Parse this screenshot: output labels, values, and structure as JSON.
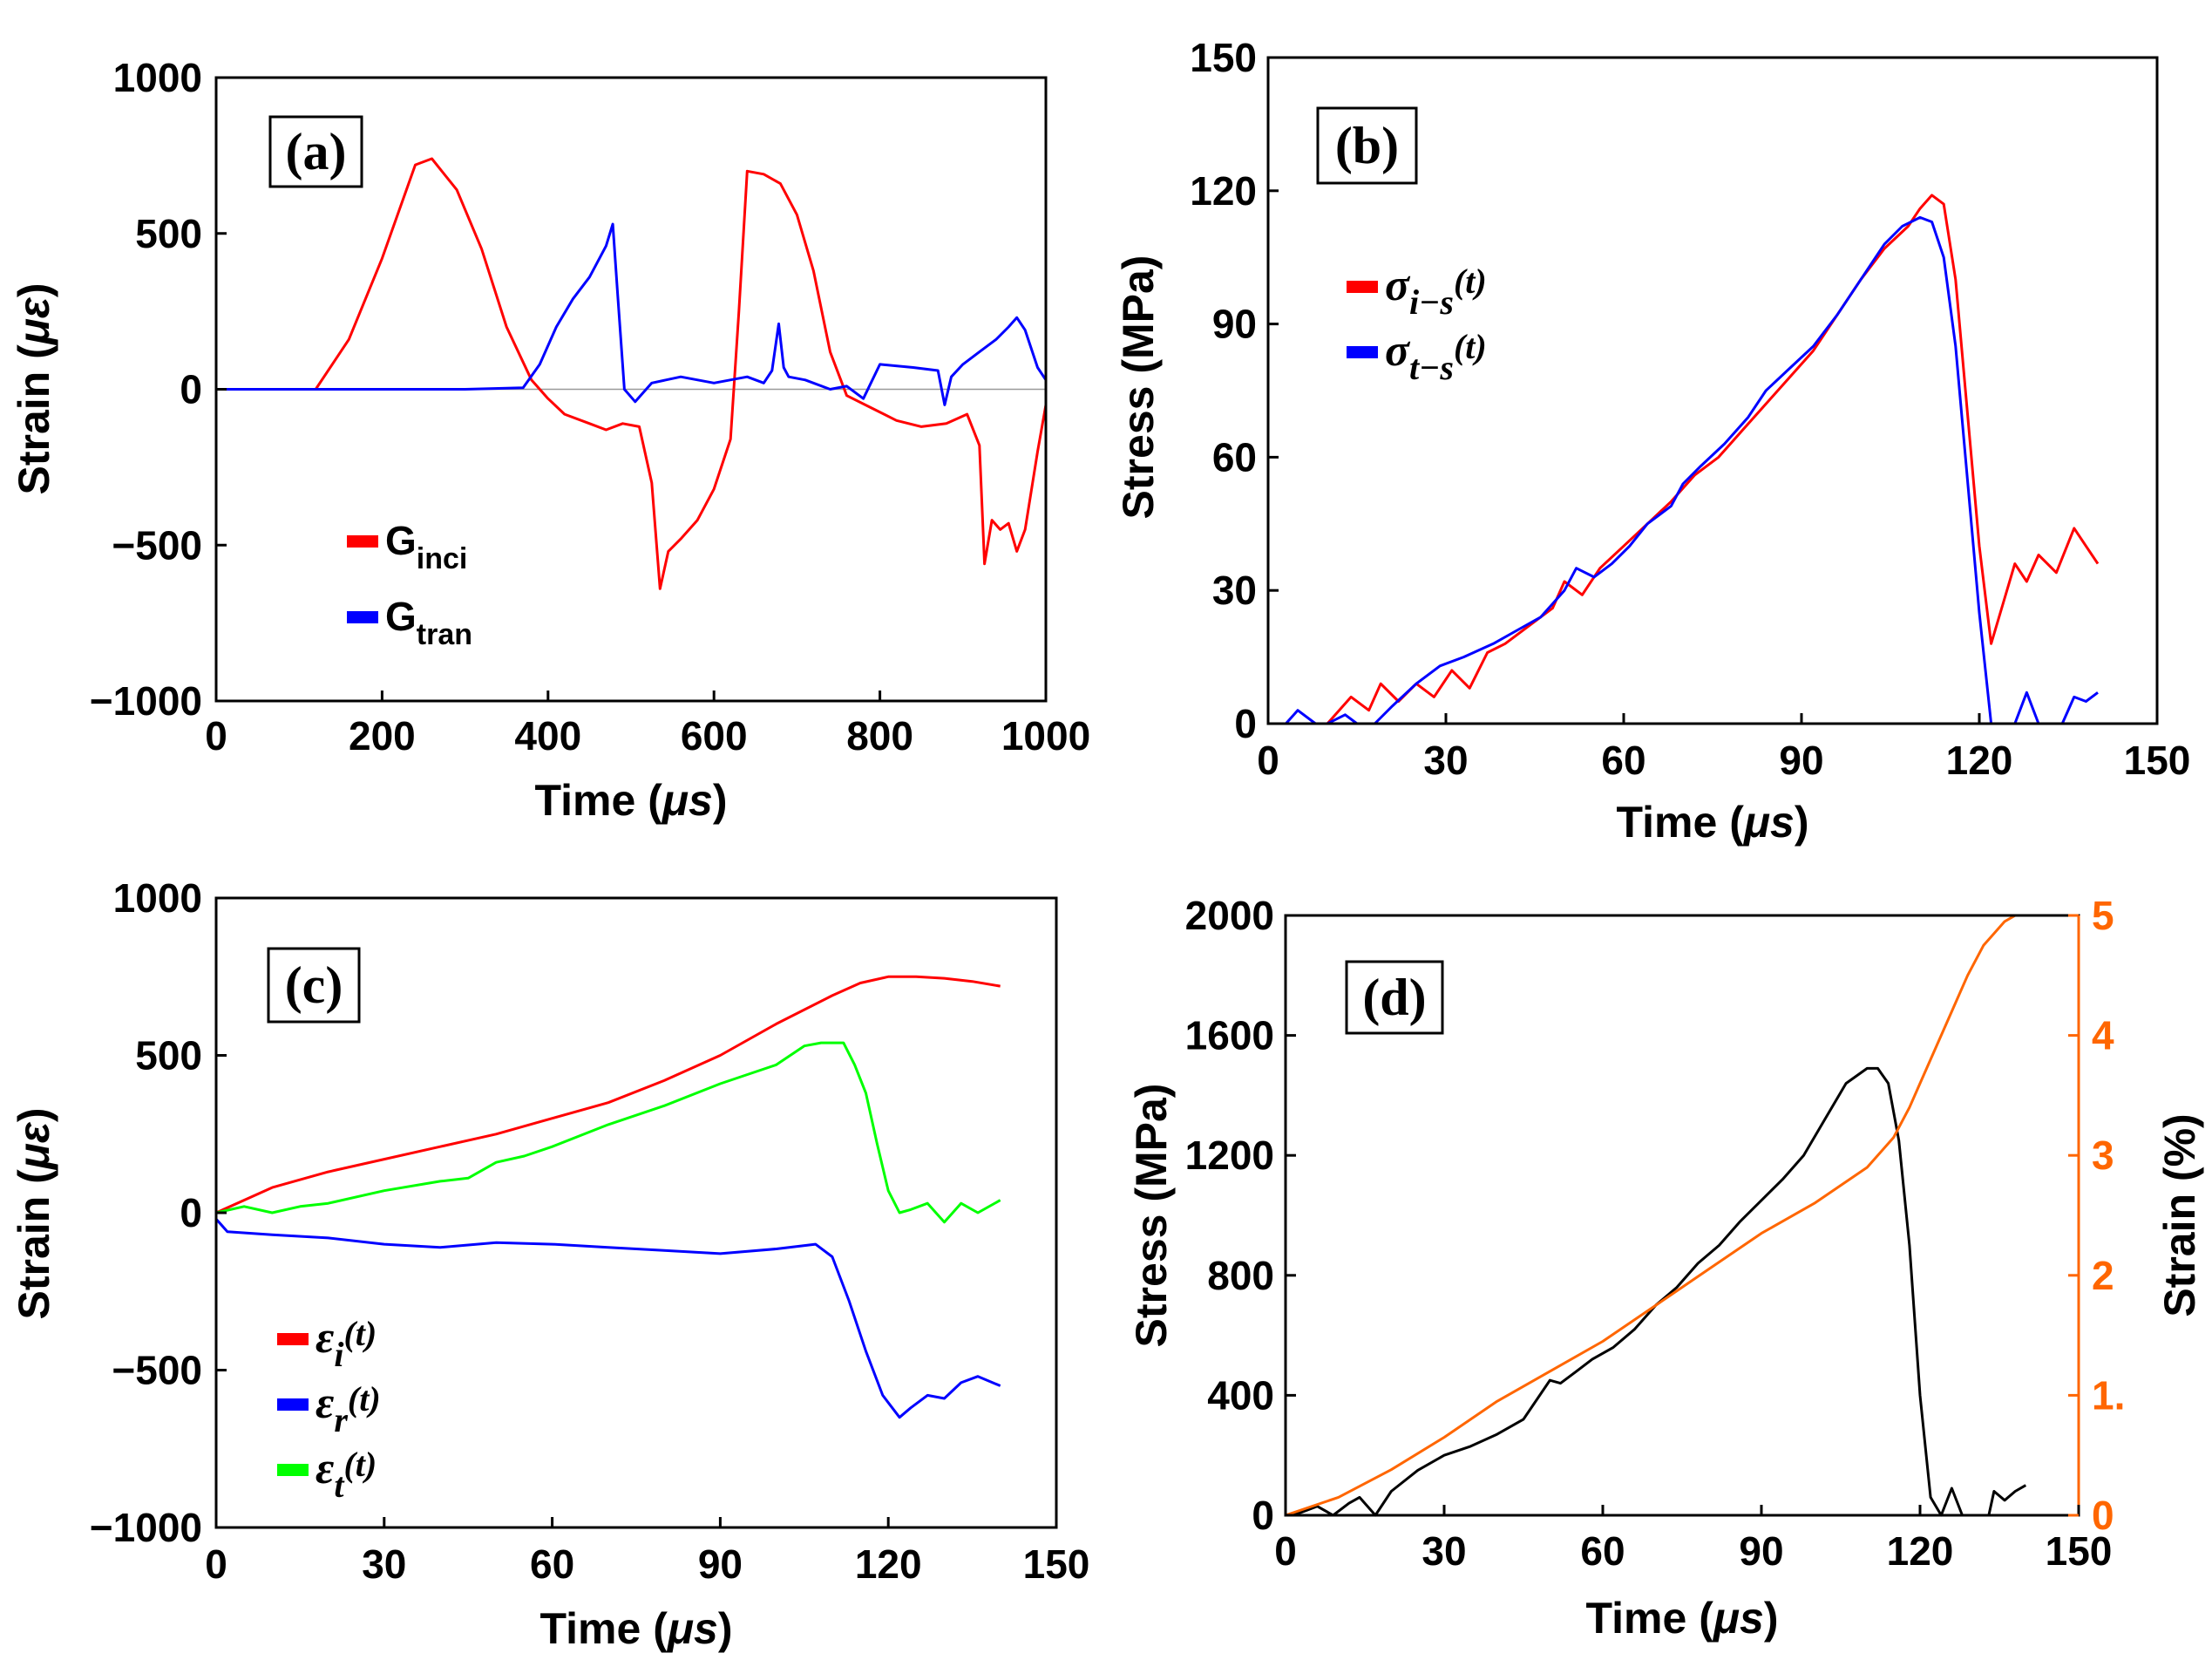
{
  "chart_data": [
    {
      "id": "a",
      "type": "line",
      "panel_label": "(a)",
      "xlabel_prefix": "Time (",
      "xlabel_mu": "μs",
      "xlabel_suffix": ")",
      "ylabel_prefix": "Strain (",
      "ylabel_mu": "με",
      "ylabel_suffix": ")",
      "xlim": [
        0,
        1000
      ],
      "ylim": [
        -1000,
        1000
      ],
      "xticks": [
        0,
        200,
        400,
        600,
        800,
        1000
      ],
      "xtick_labels": [
        "0",
        "200",
        "400",
        "600",
        "800",
        "1000"
      ],
      "yticks": [
        -1000,
        -500,
        0,
        500,
        1000
      ],
      "ytick_labels": [
        "−1000",
        "−500",
        "0",
        "500",
        "1000"
      ],
      "zero_line": true,
      "legend_position": "lower-left",
      "series": [
        {
          "name": "G_inci",
          "name_base": "G",
          "name_sub": "inci",
          "color": "#ff0000",
          "x": [
            0,
            60,
            120,
            160,
            200,
            240,
            260,
            290,
            320,
            350,
            380,
            400,
            420,
            450,
            470,
            490,
            510,
            525,
            535,
            545,
            560,
            580,
            600,
            620,
            630,
            640,
            660,
            680,
            700,
            720,
            740,
            760,
            790,
            820,
            850,
            880,
            905,
            920,
            926,
            935,
            945,
            955,
            965,
            975,
            990,
            1000
          ],
          "y": [
            0,
            0,
            0,
            160,
            420,
            720,
            740,
            640,
            450,
            200,
            30,
            -30,
            -80,
            -110,
            -130,
            -110,
            -120,
            -300,
            -640,
            -520,
            -480,
            -420,
            -320,
            -160,
            250,
            700,
            690,
            660,
            560,
            380,
            120,
            -20,
            -60,
            -100,
            -120,
            -110,
            -80,
            -180,
            -560,
            -420,
            -450,
            -430,
            -520,
            -450,
            -200,
            -50
          ]
        },
        {
          "name": "G_tran",
          "name_base": "G",
          "name_sub": "tran",
          "color": "#0000ff",
          "x": [
            0,
            100,
            200,
            300,
            370,
            390,
            410,
            430,
            450,
            470,
            478,
            484,
            492,
            505,
            525,
            560,
            600,
            640,
            660,
            670,
            678,
            684,
            690,
            710,
            740,
            760,
            780,
            800,
            840,
            870,
            878,
            886,
            900,
            920,
            940,
            955,
            965,
            975,
            990,
            1000
          ],
          "y": [
            0,
            0,
            0,
            0,
            5,
            80,
            200,
            290,
            360,
            460,
            530,
            300,
            0,
            -40,
            20,
            40,
            20,
            40,
            20,
            60,
            210,
            70,
            40,
            30,
            0,
            10,
            -30,
            80,
            70,
            60,
            -50,
            40,
            80,
            120,
            160,
            200,
            230,
            190,
            70,
            30
          ]
        }
      ]
    },
    {
      "id": "b",
      "type": "line",
      "panel_label": "(b)",
      "xlabel_prefix": "Time (",
      "xlabel_mu": "μs",
      "xlabel_suffix": ")",
      "ylabel": "Stress (MPa)",
      "xlim": [
        0,
        150
      ],
      "ylim": [
        0,
        150
      ],
      "xticks": [
        0,
        30,
        60,
        90,
        120,
        150
      ],
      "xtick_labels": [
        "0",
        "30",
        "60",
        "90",
        "120",
        "150"
      ],
      "yticks": [
        0,
        30,
        60,
        90,
        120,
        150
      ],
      "ytick_labels": [
        "0",
        "30",
        "60",
        "90",
        "120",
        "150"
      ],
      "legend_position": "upper-left",
      "series": [
        {
          "name": "σ_i-s(t)",
          "name_base": "σ",
          "name_sub": "i−s",
          "name_suffix": "(t)",
          "color": "#ff0000",
          "x": [
            10,
            14,
            17,
            19,
            22,
            25,
            28,
            31,
            34,
            37,
            40,
            44,
            48,
            50,
            53,
            56,
            60,
            64,
            68,
            72,
            76,
            80,
            84,
            88,
            92,
            96,
            100,
            104,
            108,
            110,
            112,
            114,
            116,
            118,
            120,
            122,
            124,
            126,
            128,
            130,
            133,
            136,
            138,
            140
          ],
          "y": [
            0,
            6,
            3,
            9,
            5,
            9,
            6,
            12,
            8,
            16,
            18,
            22,
            26,
            32,
            29,
            35,
            40,
            45,
            50,
            56,
            60,
            66,
            72,
            78,
            84,
            92,
            100,
            107,
            112,
            116,
            119,
            117,
            100,
            70,
            40,
            18,
            27,
            36,
            32,
            38,
            34,
            44,
            40,
            36
          ]
        },
        {
          "name": "σ_t-s(t)",
          "name_base": "σ",
          "name_sub": "t−s",
          "name_suffix": "(t)",
          "color": "#0000ff",
          "x": [
            3,
            5,
            8,
            10,
            13,
            15,
            18,
            21,
            25,
            29,
            33,
            38,
            42,
            46,
            50,
            52,
            55,
            58,
            61,
            64,
            68,
            70,
            73,
            77,
            81,
            84,
            88,
            92,
            96,
            100,
            104,
            107,
            110,
            112,
            114,
            116,
            118,
            120,
            122,
            124,
            126,
            128,
            130,
            133,
            134,
            136,
            138,
            140
          ],
          "y": [
            0,
            3,
            0,
            0,
            2,
            0,
            0,
            4,
            9,
            13,
            15,
            18,
            21,
            24,
            30,
            35,
            33,
            36,
            40,
            45,
            49,
            54,
            58,
            63,
            69,
            75,
            80,
            85,
            92,
            100,
            108,
            112,
            114,
            113,
            105,
            85,
            55,
            25,
            0,
            0,
            0,
            7,
            0,
            0,
            0,
            6,
            5,
            7
          ]
        }
      ]
    },
    {
      "id": "c",
      "type": "line",
      "panel_label": "(c)",
      "xlabel_prefix": "Time (",
      "xlabel_mu": "μs",
      "xlabel_suffix": ")",
      "ylabel_prefix": "Strain (",
      "ylabel_mu": "με",
      "ylabel_suffix": ")",
      "xlim": [
        0,
        150
      ],
      "ylim": [
        -1000,
        1000
      ],
      "xticks": [
        0,
        30,
        60,
        90,
        120,
        150
      ],
      "xtick_labels": [
        "0",
        "30",
        "60",
        "90",
        "120",
        "150"
      ],
      "yticks": [
        -1000,
        -500,
        0,
        500,
        1000
      ],
      "ytick_labels": [
        "−1000",
        "−500",
        "0",
        "500",
        "1000"
      ],
      "legend_position": "lower-left",
      "series": [
        {
          "name": "ε_i(t)",
          "name_base": "ε",
          "name_sub": "i",
          "name_suffix": "(t)",
          "color": "#ff0000",
          "x": [
            0,
            10,
            20,
            30,
            40,
            50,
            60,
            70,
            80,
            90,
            100,
            110,
            115,
            120,
            125,
            130,
            135,
            140
          ],
          "y": [
            0,
            80,
            130,
            170,
            210,
            250,
            300,
            350,
            420,
            500,
            600,
            690,
            730,
            750,
            750,
            745,
            735,
            720
          ]
        },
        {
          "name": "ε_r(t)",
          "name_base": "ε",
          "name_sub": "r",
          "name_suffix": "(t)",
          "color": "#0000ff",
          "x": [
            0,
            2,
            10,
            20,
            30,
            40,
            50,
            60,
            70,
            80,
            90,
            100,
            107,
            110,
            113,
            116,
            119,
            122,
            124,
            127,
            130,
            133,
            136,
            140
          ],
          "y": [
            -20,
            -60,
            -70,
            -80,
            -100,
            -110,
            -95,
            -100,
            -110,
            -120,
            -130,
            -115,
            -100,
            -140,
            -280,
            -440,
            -580,
            -650,
            -620,
            -580,
            -590,
            -540,
            -520,
            -550
          ]
        },
        {
          "name": "ε_t(t)",
          "name_base": "ε",
          "name_sub": "t",
          "name_suffix": "(t)",
          "color": "#00ff00",
          "x": [
            0,
            5,
            10,
            15,
            20,
            30,
            40,
            45,
            50,
            55,
            60,
            70,
            80,
            90,
            100,
            105,
            108,
            112,
            114,
            116,
            118,
            120,
            122,
            124,
            127,
            130,
            133,
            136,
            140
          ],
          "y": [
            0,
            20,
            0,
            20,
            30,
            70,
            100,
            110,
            160,
            180,
            210,
            280,
            340,
            410,
            470,
            530,
            540,
            540,
            470,
            380,
            220,
            70,
            0,
            10,
            30,
            -30,
            30,
            0,
            40
          ]
        }
      ]
    },
    {
      "id": "d",
      "type": "line",
      "panel_label": "(d)",
      "xlabel_prefix": "Time (",
      "xlabel_mu": "μs",
      "xlabel_suffix": ")",
      "ylabel": "Stress (MPa)",
      "ylabel_right": "Strain (%)",
      "xlim": [
        0,
        150
      ],
      "ylim": [
        0,
        2000
      ],
      "ylim_right": [
        0,
        5
      ],
      "xticks": [
        0,
        30,
        60,
        90,
        120,
        150
      ],
      "xtick_labels": [
        "0",
        "30",
        "60",
        "90",
        "120",
        "150"
      ],
      "yticks": [
        0,
        400,
        800,
        1200,
        1600,
        2000
      ],
      "ytick_labels": [
        "0",
        "400",
        "800",
        "1200",
        "1600",
        "2000"
      ],
      "yticks_right": [
        0,
        1,
        2,
        3,
        4,
        5
      ],
      "ytick_labels_right": [
        "0",
        "1.",
        "2",
        "3",
        "4",
        "5"
      ],
      "right_axis_color": "#ff6600",
      "series": [
        {
          "name": "Stress",
          "axis": "left",
          "color": "#000000",
          "x": [
            0,
            3,
            6,
            9,
            12,
            14,
            17,
            20,
            25,
            30,
            35,
            40,
            45,
            50,
            52,
            55,
            58,
            62,
            66,
            70,
            74,
            78,
            82,
            86,
            90,
            94,
            98,
            102,
            106,
            110,
            112,
            114,
            116,
            118,
            120,
            122,
            124,
            126,
            128,
            130,
            133,
            134,
            136,
            138,
            140
          ],
          "y": [
            0,
            10,
            30,
            0,
            40,
            60,
            0,
            80,
            150,
            200,
            230,
            270,
            320,
            450,
            440,
            480,
            520,
            560,
            620,
            700,
            760,
            840,
            900,
            980,
            1050,
            1120,
            1200,
            1320,
            1440,
            1490,
            1490,
            1440,
            1250,
            900,
            400,
            60,
            0,
            90,
            0,
            0,
            0,
            80,
            50,
            80,
            100
          ]
        },
        {
          "name": "Strain",
          "axis": "right",
          "color": "#ff6600",
          "x": [
            0,
            10,
            20,
            30,
            40,
            50,
            60,
            70,
            80,
            90,
            100,
            110,
            115,
            118,
            120,
            123,
            126,
            129,
            132,
            136,
            138
          ],
          "y": [
            0,
            0.15,
            0.38,
            0.65,
            0.95,
            1.2,
            1.45,
            1.75,
            2.05,
            2.35,
            2.6,
            2.9,
            3.15,
            3.4,
            3.6,
            3.9,
            4.2,
            4.5,
            4.75,
            4.95,
            5.0
          ]
        }
      ]
    }
  ]
}
